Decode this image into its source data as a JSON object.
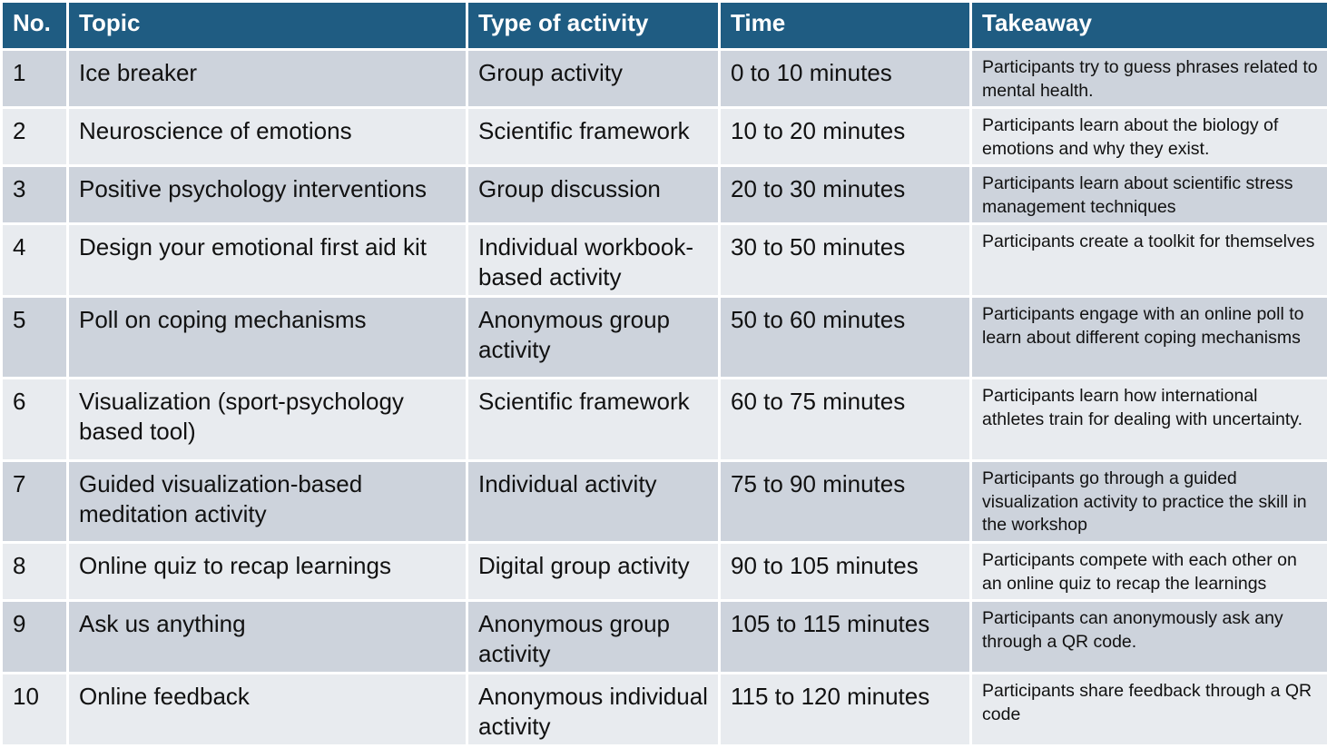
{
  "table": {
    "columns": [
      "No.",
      "Topic",
      "Type of activity",
      "Time",
      "Takeaway"
    ],
    "rows": [
      [
        "1",
        "Ice breaker",
        "Group activity",
        "0 to 10 minutes",
        "Participants try to guess phrases related to mental health."
      ],
      [
        "2",
        "Neuroscience of emotions",
        "Scientific framework",
        "10 to 20 minutes",
        "Participants learn about the biology of emotions and why they exist."
      ],
      [
        "3",
        "Positive psychology interventions",
        "Group discussion",
        "20 to 30 minutes",
        "Participants learn about scientific stress management techniques"
      ],
      [
        "4",
        "Design your emotional first aid kit",
        "Individual workbook-based activity",
        "30 to 50 minutes",
        "Participants create a toolkit for themselves"
      ],
      [
        "5",
        "Poll on coping mechanisms",
        "Anonymous group activity",
        "50 to 60 minutes",
        "Participants engage with an online poll to learn about different coping mechanisms"
      ],
      [
        "6",
        "Visualization (sport-psychology based tool)",
        "Scientific framework",
        "60 to 75 minutes",
        "Participants learn how international athletes train for dealing with uncertainty."
      ],
      [
        "7",
        "Guided visualization-based meditation activity",
        "Individual activity",
        "75 to 90 minutes",
        "Participants go through a guided visualization activity to practice the skill in the workshop"
      ],
      [
        "8",
        "Online quiz to recap learnings",
        "Digital group activity",
        "90 to 105 minutes",
        "Participants compete with each other on an online quiz to recap the learnings"
      ],
      [
        "9",
        "Ask us anything",
        "Anonymous group activity",
        "105 to 115 minutes",
        "Participants can anonymously ask any through a QR code."
      ],
      [
        "10",
        "Online feedback",
        "Anonymous individual activity",
        "115 to 120 minutes",
        "Participants share feedback through a QR code"
      ]
    ]
  }
}
